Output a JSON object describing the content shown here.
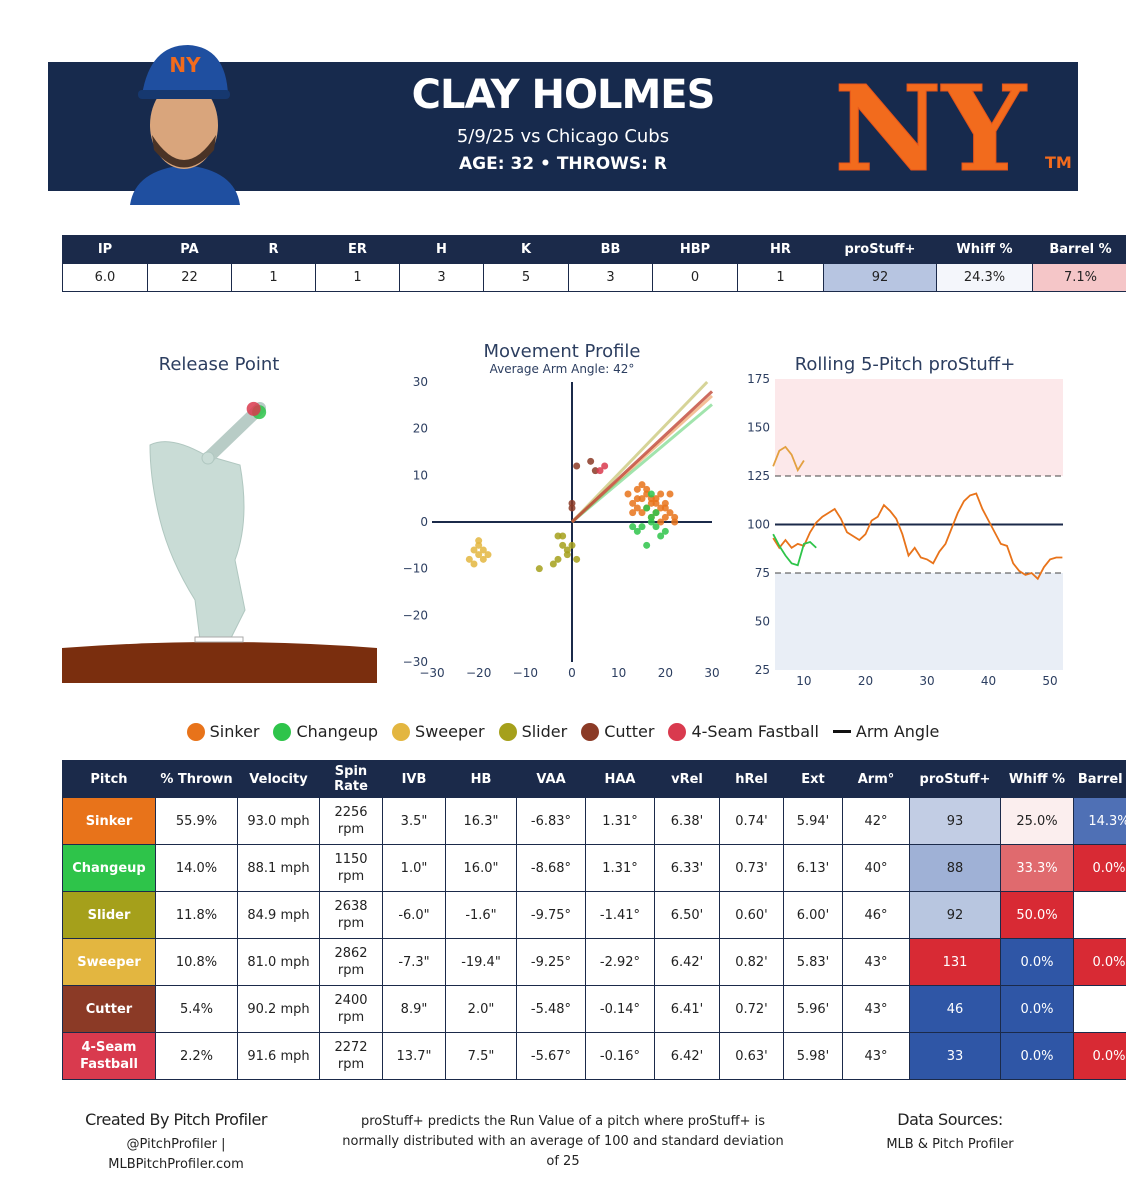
{
  "header": {
    "name": "CLAY HOLMES",
    "game": "5/9/25 vs Chicago Cubs",
    "info": "AGE: 32 • THROWS: R",
    "logo": "NY",
    "logo_mark": "TM"
  },
  "summary": {
    "columns": [
      "IP",
      "PA",
      "R",
      "ER",
      "H",
      "K",
      "BB",
      "HBP",
      "HR",
      "proStuff+",
      "Whiff %",
      "Barrel %"
    ],
    "values": [
      "6.0",
      "22",
      "1",
      "1",
      "3",
      "5",
      "3",
      "0",
      "1",
      "92",
      "24.3%",
      "7.1%"
    ],
    "cell_colors": [
      "#ffffff",
      "#ffffff",
      "#ffffff",
      "#ffffff",
      "#ffffff",
      "#ffffff",
      "#ffffff",
      "#ffffff",
      "#ffffff",
      "#b7c5e1",
      "#f4f6fb",
      "#f5c6c8"
    ]
  },
  "chart_data": [
    {
      "type": "release",
      "title": "Release Point",
      "series": [
        {
          "color": "#2ec44a",
          "x": [
            0.73
          ],
          "values": [
            6.33
          ]
        },
        {
          "color": "#d93a4e",
          "x": [
            0.63
          ],
          "values": [
            6.42
          ]
        }
      ]
    },
    {
      "type": "scatter",
      "title": "Movement Profile",
      "subtitle": "Average Arm Angle: 42°",
      "arm_angle_label": "Arm Angle",
      "xlim": [
        -30,
        30
      ],
      "ylim": [
        -30,
        30
      ],
      "xticks": [
        {
          "value": -30,
          "label": "−30"
        },
        {
          "value": -20,
          "label": "−20"
        },
        {
          "value": -10,
          "label": "−10"
        },
        0,
        10,
        20,
        30
      ],
      "yticks": [
        {
          "value": -30,
          "label": "−30"
        },
        {
          "value": -20,
          "label": "−20"
        },
        {
          "value": -10,
          "label": "−10"
        },
        0,
        10,
        20,
        30
      ],
      "series": [
        {
          "name": "Sinker",
          "color": "#e8731a",
          "arm_angle": 42,
          "x": [
            12,
            13,
            14,
            15,
            15,
            16,
            16,
            17,
            17,
            18,
            18,
            19,
            19,
            20,
            20,
            21,
            22,
            13,
            14,
            16,
            18,
            20,
            15,
            17,
            19,
            22,
            14,
            21
          ],
          "values": [
            6,
            4,
            7,
            5,
            2,
            3,
            6,
            4,
            1,
            5,
            2,
            3,
            0,
            4,
            1,
            2,
            0,
            2,
            3,
            7,
            4,
            3,
            8,
            5,
            6,
            1,
            5,
            6
          ]
        },
        {
          "name": "Changeup",
          "color": "#2ec44a",
          "arm_angle": 40,
          "x": [
            13,
            14,
            16,
            16,
            17,
            17,
            18,
            18,
            19,
            20,
            15,
            17
          ],
          "values": [
            -1,
            -2,
            -5,
            3,
            0,
            6,
            -1,
            2,
            -3,
            -2,
            -1,
            1
          ]
        },
        {
          "name": "Sweeper",
          "color": "#e3b640",
          "arm_angle": 43,
          "x": [
            -21,
            -20,
            -20,
            -19,
            -22,
            -21,
            -19,
            -20,
            -18
          ],
          "values": [
            -6,
            -7,
            -5,
            -8,
            -8,
            -9,
            -6,
            -4,
            -7
          ]
        },
        {
          "name": "Slider",
          "color": "#a5a01b",
          "arm_angle": 46,
          "x": [
            -7,
            -4,
            -3,
            -2,
            -1,
            -1,
            -2,
            0,
            1,
            -3
          ],
          "values": [
            -10,
            -9,
            -8,
            -5,
            -6,
            -7,
            -3,
            -5,
            -8,
            -3
          ]
        },
        {
          "name": "Cutter",
          "color": "#8b3a26",
          "arm_angle": 43,
          "x": [
            1,
            4,
            5,
            0,
            0
          ],
          "values": [
            12,
            13,
            11,
            4,
            3
          ]
        },
        {
          "name": "4-Seam Fastball",
          "color": "#d93a4e",
          "arm_angle": 43,
          "x": [
            7,
            6
          ],
          "values": [
            12,
            11
          ]
        }
      ]
    },
    {
      "type": "line",
      "title": "Rolling 5-Pitch proStuff+",
      "xlim": [
        5.3,
        52.1
      ],
      "ylim": [
        25,
        175
      ],
      "xticks": [
        10,
        20,
        30,
        40,
        50
      ],
      "yticks": [
        25,
        50,
        75,
        100,
        125,
        150,
        175
      ],
      "thresholds": {
        "high": 125,
        "mean": 100,
        "low": 75
      },
      "high_color": "#fce8ea",
      "low_color": "#e9eef6",
      "series": [
        {
          "color": "#e8731a",
          "x": [
            5,
            6,
            7,
            8,
            9,
            10,
            11,
            12,
            13,
            14,
            15,
            16,
            17,
            18,
            19,
            20,
            21,
            22,
            23,
            24,
            25,
            26,
            27,
            28,
            29,
            30,
            31,
            32,
            33,
            34,
            35,
            36,
            37,
            38,
            39,
            40,
            41,
            42,
            43,
            44,
            45,
            46,
            47,
            48,
            49,
            50,
            51,
            52
          ],
          "values": [
            93,
            88,
            92,
            88,
            90,
            89,
            96,
            101,
            104,
            106,
            108,
            103,
            96,
            94,
            92,
            95,
            102,
            104,
            110,
            107,
            103,
            95,
            84,
            88,
            83,
            82,
            80,
            86,
            90,
            98,
            106,
            112,
            115,
            116,
            108,
            102,
            96,
            90,
            89,
            80,
            76,
            74,
            75,
            72,
            78,
            82,
            83,
            83
          ]
        },
        {
          "color": "#2ec44a",
          "x": [
            5,
            6,
            7,
            8,
            9,
            10,
            11,
            12
          ],
          "values": [
            95,
            89,
            84,
            80,
            79,
            90,
            91,
            88
          ]
        },
        {
          "color": "#e3a040",
          "x": [
            5,
            6,
            7,
            8,
            9,
            10
          ],
          "values": [
            130,
            138,
            140,
            136,
            128,
            133
          ]
        }
      ]
    }
  ],
  "pitch_table": {
    "columns": [
      "Pitch",
      "% Thrown",
      "Velocity",
      "Spin Rate",
      "IVB",
      "HB",
      "VAA",
      "HAA",
      "vRel",
      "hRel",
      "Ext",
      "Arm°",
      "proStuff+",
      "Whiff %",
      "Barrel %"
    ],
    "rows": [
      {
        "color": "#e8731a",
        "shade": [
          "#c2cde4",
          "#fbeeee",
          "#4f70b5"
        ],
        "cells": [
          "Sinker",
          "55.9%",
          "93.0 mph",
          "2256 rpm",
          "3.5\"",
          "16.3\"",
          "-6.83°",
          "1.31°",
          "6.38'",
          "0.74'",
          "5.94'",
          "42°",
          "93",
          "25.0%",
          "14.3%"
        ]
      },
      {
        "color": "#2ec44a",
        "shade": [
          "#9fb1d6",
          "#e06a6e",
          "#d82a34"
        ],
        "cells": [
          "Changeup",
          "14.0%",
          "88.1 mph",
          "1150 rpm",
          "1.0\"",
          "16.0\"",
          "-8.68°",
          "1.31°",
          "6.33'",
          "0.73'",
          "6.13'",
          "40°",
          "88",
          "33.3%",
          "0.0%"
        ]
      },
      {
        "color": "#a5a01b",
        "shade": [
          "#b8c6e0",
          "#d82a34",
          "#ffffff"
        ],
        "cells": [
          "Slider",
          "11.8%",
          "84.9 mph",
          "2638 rpm",
          "-6.0\"",
          "-1.6\"",
          "-9.75°",
          "-1.41°",
          "6.50'",
          "0.60'",
          "6.00'",
          "46°",
          "92",
          "50.0%",
          null
        ]
      },
      {
        "color": "#e3b640",
        "shade": [
          "#d82a34",
          "#2f56a6",
          "#d82a34"
        ],
        "cells": [
          "Sweeper",
          "10.8%",
          "81.0 mph",
          "2862 rpm",
          "-7.3\"",
          "-19.4\"",
          "-9.25°",
          "-2.92°",
          "6.42'",
          "0.82'",
          "5.83'",
          "43°",
          "131",
          "0.0%",
          "0.0%"
        ]
      },
      {
        "color": "#8b3a26",
        "shade": [
          "#2f56a6",
          "#2f56a6",
          "#ffffff"
        ],
        "cells": [
          "Cutter",
          "5.4%",
          "90.2 mph",
          "2400 rpm",
          "8.9\"",
          "2.0\"",
          "-5.48°",
          "-0.14°",
          "6.41'",
          "0.72'",
          "5.96'",
          "43°",
          "46",
          "0.0%",
          null
        ]
      },
      {
        "color": "#d93a4e",
        "shade": [
          "#2f56a6",
          "#2f56a6",
          "#d82a34"
        ],
        "cells": [
          "4-Seam Fastball",
          "2.2%",
          "91.6 mph",
          "2272 rpm",
          "13.7\"",
          "7.5\"",
          "-5.67°",
          "-0.16°",
          "6.42'",
          "0.63'",
          "5.98'",
          "43°",
          "33",
          "0.0%",
          "0.0%"
        ]
      }
    ]
  },
  "footer": {
    "credit": "Created By Pitch Profiler",
    "handle": "@PitchProfiler |",
    "site": "MLBPitchProfiler.com",
    "note": "proStuff+ predicts the Run Value of a pitch where proStuff+ is normally distributed with an average of 100 and standard deviation of 25",
    "sources_title": "Data Sources:",
    "sources": "MLB & Pitch Profiler"
  }
}
